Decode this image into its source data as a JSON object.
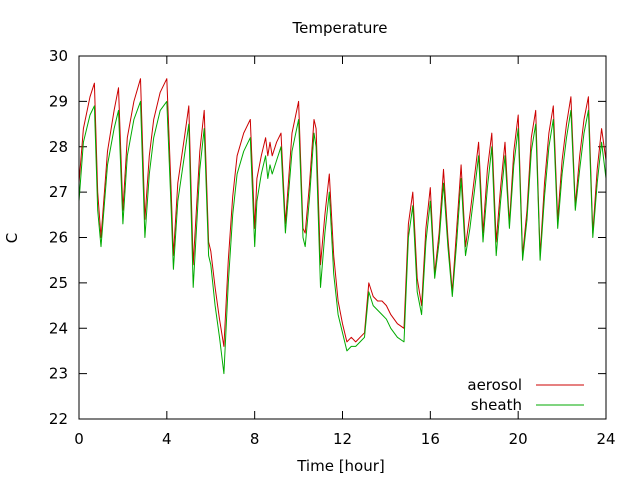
{
  "chart_data": {
    "type": "line",
    "title": "Temperature",
    "xlabel": "Time [hour]",
    "ylabel": "C",
    "xlim": [
      0,
      24
    ],
    "ylim": [
      22,
      30
    ],
    "xticks": [
      0,
      4,
      8,
      12,
      16,
      20,
      24
    ],
    "yticks": [
      22,
      23,
      24,
      25,
      26,
      27,
      28,
      29,
      30
    ],
    "grid": false,
    "legend_position": "bottom-right",
    "series": [
      {
        "name": "aerosol",
        "color": "#cc0000",
        "x": [
          0.0,
          0.2,
          0.5,
          0.7,
          0.85,
          1.0,
          1.3,
          1.6,
          1.8,
          2.0,
          2.2,
          2.5,
          2.8,
          3.0,
          3.2,
          3.4,
          3.7,
          4.0,
          4.2,
          4.3,
          4.5,
          4.8,
          5.0,
          5.2,
          5.5,
          5.7,
          5.9,
          6.0,
          6.2,
          6.4,
          6.6,
          6.8,
          7.0,
          7.2,
          7.5,
          7.8,
          8.0,
          8.1,
          8.3,
          8.5,
          8.6,
          8.7,
          8.8,
          9.0,
          9.2,
          9.4,
          9.7,
          10.0,
          10.2,
          10.3,
          10.5,
          10.7,
          10.8,
          11.0,
          11.2,
          11.4,
          11.6,
          11.8,
          12.0,
          12.2,
          12.4,
          12.6,
          12.8,
          13.0,
          13.2,
          13.4,
          13.6,
          13.8,
          14.0,
          14.2,
          14.5,
          14.8,
          15.0,
          15.2,
          15.4,
          15.6,
          15.8,
          16.0,
          16.2,
          16.4,
          16.6,
          16.8,
          17.0,
          17.2,
          17.4,
          17.6,
          17.8,
          18.0,
          18.2,
          18.4,
          18.6,
          18.8,
          19.0,
          19.2,
          19.4,
          19.6,
          19.8,
          20.0,
          20.2,
          20.4,
          20.6,
          20.8,
          21.0,
          21.2,
          21.4,
          21.6,
          21.8,
          22.0,
          22.2,
          22.4,
          22.6,
          22.8,
          23.0,
          23.2,
          23.4,
          23.6,
          23.8,
          24.0
        ],
        "values": [
          27.2,
          28.4,
          29.1,
          29.4,
          27.0,
          26.0,
          27.9,
          28.8,
          29.3,
          26.6,
          28.2,
          29.0,
          29.5,
          26.4,
          27.8,
          28.6,
          29.2,
          29.5,
          27.0,
          25.6,
          27.2,
          28.2,
          28.9,
          25.4,
          27.9,
          28.8,
          25.9,
          25.7,
          24.9,
          24.2,
          23.6,
          25.5,
          26.9,
          27.8,
          28.3,
          28.6,
          26.2,
          27.3,
          27.8,
          28.2,
          27.8,
          28.1,
          27.8,
          28.1,
          28.3,
          26.3,
          28.3,
          29.0,
          26.2,
          26.1,
          27.2,
          28.6,
          28.4,
          25.4,
          26.5,
          27.4,
          25.6,
          24.6,
          24.1,
          23.7,
          23.8,
          23.7,
          23.8,
          23.9,
          25.0,
          24.7,
          24.6,
          24.6,
          24.5,
          24.3,
          24.1,
          24.0,
          26.3,
          27.0,
          25.1,
          24.5,
          26.2,
          27.1,
          25.2,
          26.1,
          27.5,
          26.0,
          24.8,
          26.2,
          27.6,
          25.8,
          26.5,
          27.3,
          28.1,
          26.1,
          27.5,
          28.3,
          25.9,
          27.1,
          28.1,
          26.3,
          27.9,
          28.7,
          25.6,
          26.6,
          28.2,
          28.8,
          25.6,
          27.2,
          28.3,
          28.9,
          26.4,
          27.7,
          28.5,
          29.1,
          26.7,
          27.8,
          28.6,
          29.1,
          26.1,
          27.5,
          28.4,
          27.7
        ]
      },
      {
        "name": "sheath",
        "color": "#00aa00",
        "x": [
          0.0,
          0.2,
          0.5,
          0.7,
          0.85,
          1.0,
          1.3,
          1.6,
          1.8,
          2.0,
          2.2,
          2.5,
          2.8,
          3.0,
          3.2,
          3.4,
          3.7,
          4.0,
          4.2,
          4.3,
          4.5,
          4.8,
          5.0,
          5.2,
          5.5,
          5.7,
          5.9,
          6.0,
          6.2,
          6.4,
          6.6,
          6.8,
          7.0,
          7.2,
          7.5,
          7.8,
          8.0,
          8.1,
          8.3,
          8.5,
          8.6,
          8.7,
          8.8,
          9.0,
          9.2,
          9.4,
          9.7,
          10.0,
          10.2,
          10.3,
          10.5,
          10.7,
          10.8,
          11.0,
          11.2,
          11.4,
          11.6,
          11.8,
          12.0,
          12.2,
          12.4,
          12.6,
          12.8,
          13.0,
          13.2,
          13.4,
          13.6,
          13.8,
          14.0,
          14.2,
          14.5,
          14.8,
          15.0,
          15.2,
          15.4,
          15.6,
          15.8,
          16.0,
          16.2,
          16.4,
          16.6,
          16.8,
          17.0,
          17.2,
          17.4,
          17.6,
          17.8,
          18.0,
          18.2,
          18.4,
          18.6,
          18.8,
          19.0,
          19.2,
          19.4,
          19.6,
          19.8,
          20.0,
          20.2,
          20.4,
          20.6,
          20.8,
          21.0,
          21.2,
          21.4,
          21.6,
          21.8,
          22.0,
          22.2,
          22.4,
          22.6,
          22.8,
          23.0,
          23.2,
          23.4,
          23.6,
          23.8,
          24.0
        ],
        "values": [
          26.8,
          28.1,
          28.7,
          28.9,
          26.6,
          25.8,
          27.6,
          28.4,
          28.8,
          26.3,
          27.8,
          28.6,
          29.0,
          26.0,
          27.4,
          28.2,
          28.8,
          29.0,
          26.6,
          25.3,
          26.8,
          27.8,
          28.5,
          24.9,
          27.5,
          28.4,
          25.6,
          25.4,
          24.5,
          23.8,
          23.0,
          25.0,
          26.5,
          27.4,
          27.9,
          28.2,
          25.8,
          26.8,
          27.4,
          27.8,
          27.3,
          27.6,
          27.4,
          27.7,
          28.0,
          26.1,
          27.9,
          28.6,
          26.0,
          25.8,
          26.9,
          28.3,
          28.0,
          24.9,
          26.1,
          27.0,
          25.2,
          24.3,
          23.9,
          23.5,
          23.6,
          23.6,
          23.7,
          23.8,
          24.8,
          24.5,
          24.4,
          24.3,
          24.2,
          24.0,
          23.8,
          23.7,
          26.0,
          26.7,
          24.8,
          24.3,
          25.9,
          26.8,
          25.1,
          25.9,
          27.2,
          25.8,
          24.7,
          25.9,
          27.3,
          25.6,
          26.2,
          27.0,
          27.8,
          25.9,
          27.1,
          28.0,
          25.6,
          26.8,
          27.8,
          26.2,
          27.6,
          28.4,
          25.5,
          26.4,
          27.9,
          28.5,
          25.5,
          26.9,
          28.0,
          28.6,
          26.2,
          27.4,
          28.2,
          28.8,
          26.6,
          27.5,
          28.3,
          28.8,
          26.0,
          27.2,
          28.1,
          27.3
        ]
      }
    ]
  }
}
